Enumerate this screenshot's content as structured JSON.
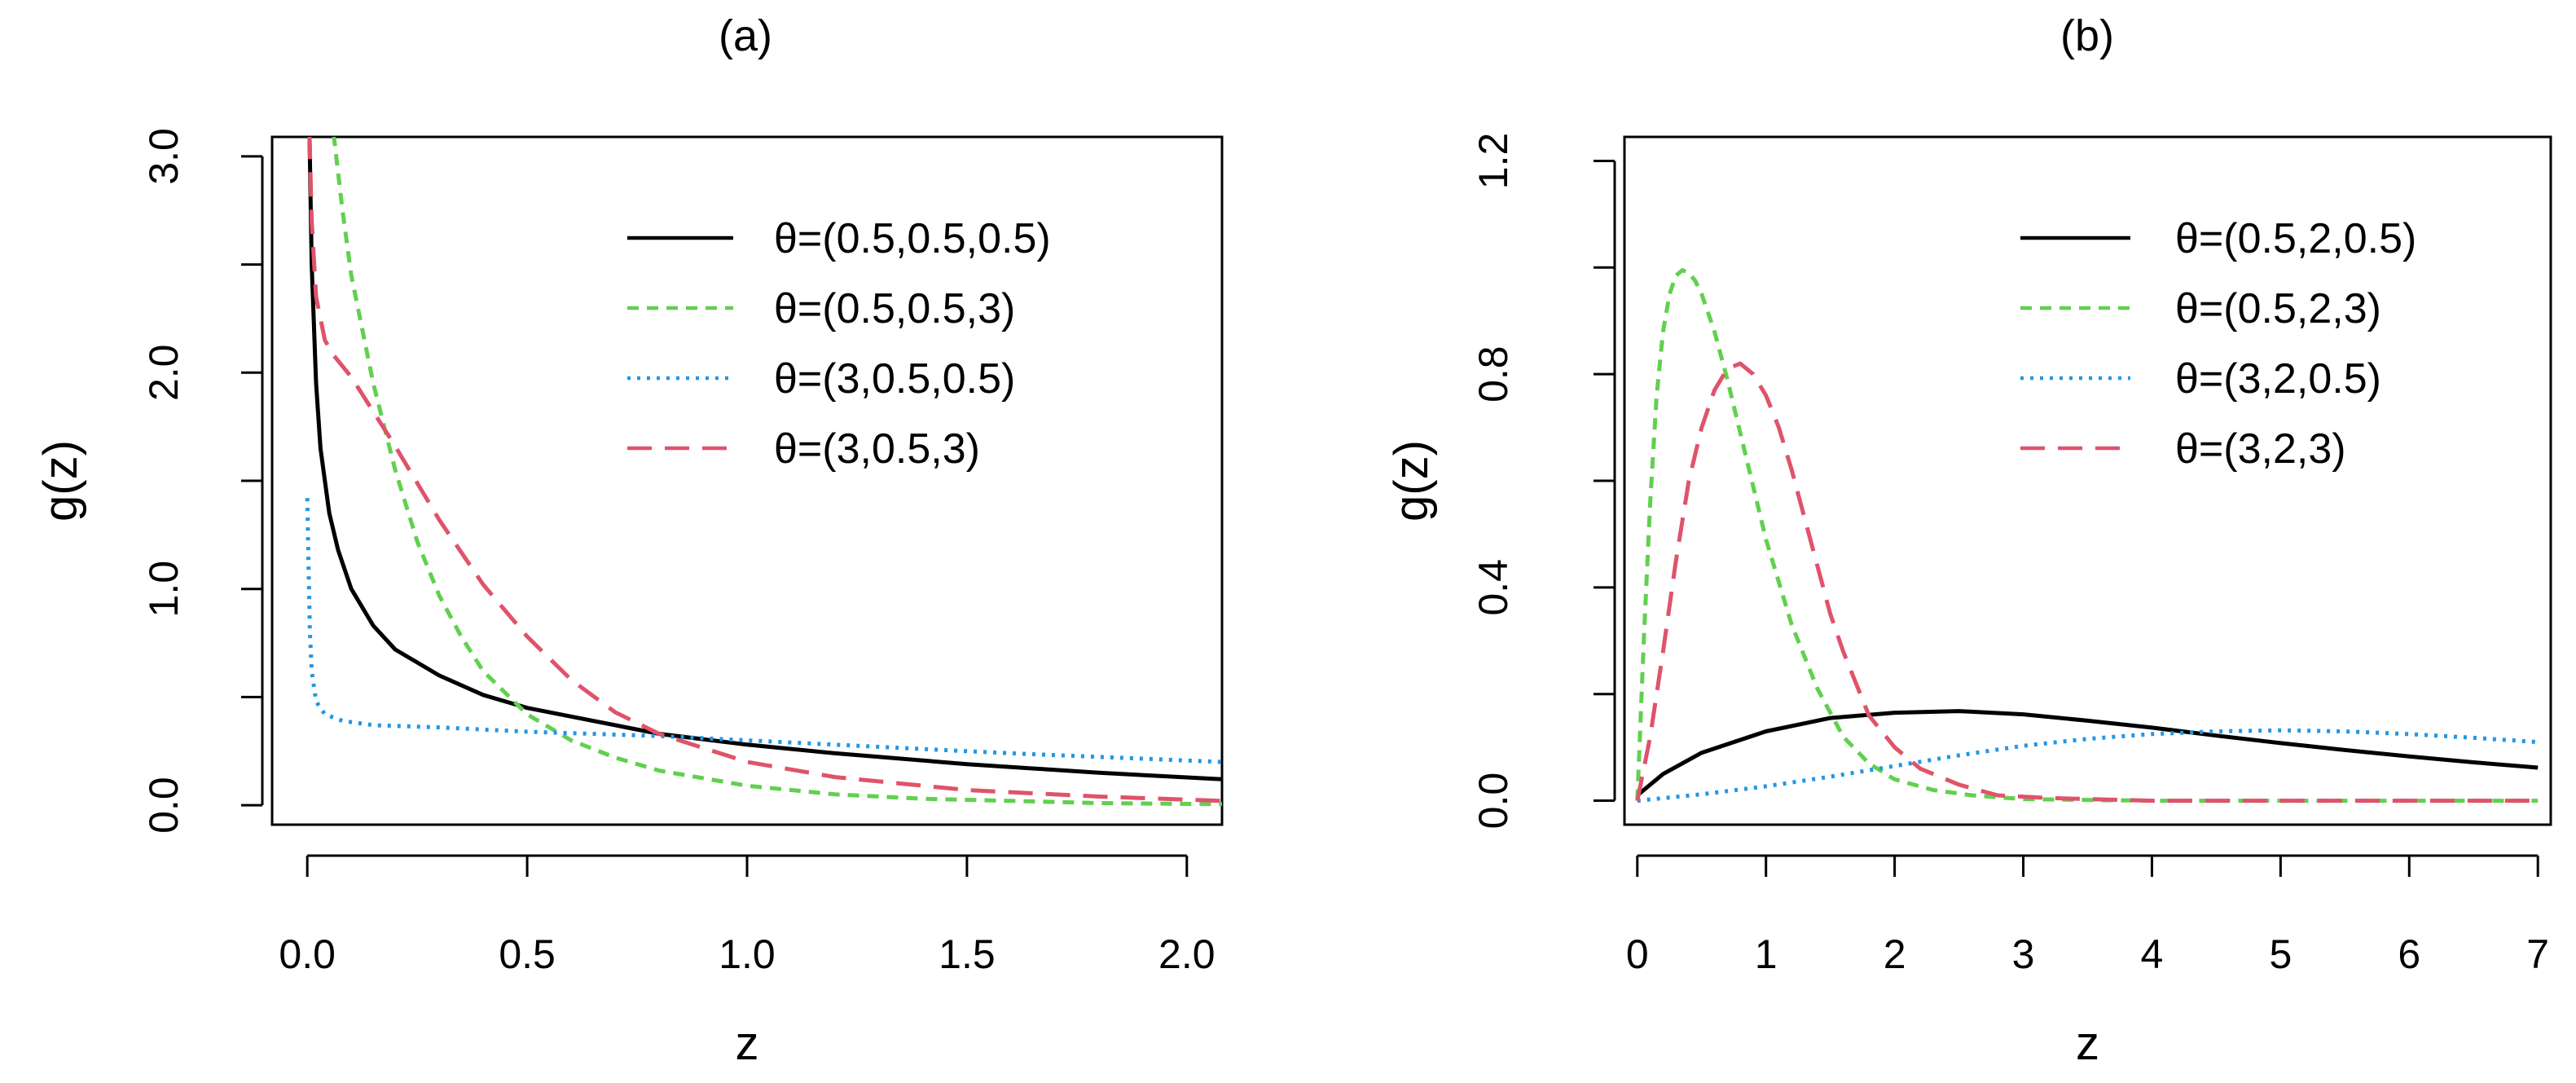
{
  "chart_data": [
    {
      "type": "line",
      "panel": "a",
      "title": "(a)",
      "xlabel": "z",
      "ylabel": "g(z)",
      "xlim": [
        -0.08,
        2.08
      ],
      "ylim": [
        -0.09,
        3.09
      ],
      "grid": false,
      "legend_position": "top-right",
      "x_ticks": [
        0.0,
        0.5,
        1.0,
        1.5,
        2.0
      ],
      "x_tick_labels": [
        "0.0",
        "0.5",
        "1.0",
        "1.5",
        "2.0"
      ],
      "y_ticks": [
        0.0,
        0.5,
        1.0,
        1.5,
        2.0,
        2.5,
        3.0
      ],
      "y_tick_labels": [
        "0.0",
        "",
        "1.0",
        "",
        "2.0",
        "",
        "3.0"
      ],
      "series": [
        {
          "name": "θ=(0.5,0.5,0.5)",
          "color": "#000000",
          "dash": "solid",
          "x": [
            0.005,
            0.01,
            0.02,
            0.03,
            0.05,
            0.07,
            0.1,
            0.15,
            0.2,
            0.3,
            0.4,
            0.5,
            0.6,
            0.8,
            1.0,
            1.2,
            1.5,
            1.8,
            2.08
          ],
          "y": [
            3.1,
            2.5,
            1.95,
            1.65,
            1.35,
            1.18,
            1.0,
            0.83,
            0.72,
            0.6,
            0.51,
            0.45,
            0.41,
            0.33,
            0.28,
            0.24,
            0.19,
            0.15,
            0.12
          ]
        },
        {
          "name": "θ=(0.5,0.5,3)",
          "color": "#61d04f",
          "dash": "dashed",
          "x": [
            0.06,
            0.08,
            0.1,
            0.15,
            0.2,
            0.25,
            0.3,
            0.35,
            0.4,
            0.5,
            0.6,
            0.7,
            0.8,
            1.0,
            1.2,
            1.4,
            1.6,
            1.8,
            2.08
          ],
          "y": [
            3.1,
            2.75,
            2.45,
            1.95,
            1.55,
            1.22,
            0.97,
            0.78,
            0.62,
            0.42,
            0.3,
            0.22,
            0.16,
            0.09,
            0.05,
            0.03,
            0.02,
            0.01,
            0.005
          ]
        },
        {
          "name": "θ=(3,0.5,0.5)",
          "color": "#2297e6",
          "dash": "dotted",
          "x": [
            0.0,
            0.003,
            0.006,
            0.01,
            0.02,
            0.04,
            0.08,
            0.15,
            0.3,
            0.5,
            0.8,
            1.0,
            1.3,
            1.6,
            2.08
          ],
          "y": [
            1.42,
            1.1,
            0.8,
            0.62,
            0.48,
            0.42,
            0.39,
            0.37,
            0.36,
            0.34,
            0.32,
            0.3,
            0.27,
            0.24,
            0.2
          ]
        },
        {
          "name": "θ=(3,0.5,3)",
          "color": "#df536b",
          "dash": "longdash",
          "x": [
            0.005,
            0.01,
            0.02,
            0.04,
            0.06,
            0.1,
            0.15,
            0.2,
            0.3,
            0.4,
            0.5,
            0.6,
            0.7,
            0.8,
            1.0,
            1.2,
            1.5,
            1.8,
            2.08
          ],
          "y": [
            3.1,
            2.7,
            2.35,
            2.15,
            2.08,
            1.98,
            1.82,
            1.66,
            1.32,
            1.02,
            0.78,
            0.58,
            0.43,
            0.33,
            0.2,
            0.13,
            0.07,
            0.04,
            0.02
          ]
        }
      ]
    },
    {
      "type": "line",
      "panel": "b",
      "title": "(b)",
      "xlabel": "z",
      "ylabel": "g(z)",
      "xlim": [
        -0.1,
        7.1
      ],
      "ylim": [
        -0.045,
        1.245
      ],
      "grid": false,
      "legend_position": "top-right",
      "x_ticks": [
        0,
        1,
        2,
        3,
        4,
        5,
        6,
        7
      ],
      "x_tick_labels": [
        "0",
        "1",
        "2",
        "3",
        "4",
        "5",
        "6",
        "7"
      ],
      "y_ticks": [
        0.0,
        0.2,
        0.4,
        0.6,
        0.8,
        1.0,
        1.2
      ],
      "y_tick_labels": [
        "0.0",
        "",
        "0.4",
        "",
        "0.8",
        "",
        "1.2"
      ],
      "series": [
        {
          "name": "θ=(0.5,2,0.5)",
          "color": "#000000",
          "dash": "solid",
          "x": [
            0.0,
            0.2,
            0.5,
            1.0,
            1.5,
            2.0,
            2.5,
            3.0,
            3.5,
            4.0,
            4.5,
            5.0,
            5.5,
            6.0,
            6.5,
            7.0
          ],
          "y": [
            0.01,
            0.05,
            0.09,
            0.13,
            0.155,
            0.165,
            0.168,
            0.162,
            0.15,
            0.137,
            0.122,
            0.108,
            0.095,
            0.083,
            0.072,
            0.062
          ]
        },
        {
          "name": "θ=(0.5,2,3)",
          "color": "#61d04f",
          "dash": "dashed",
          "x": [
            0.0,
            0.05,
            0.1,
            0.15,
            0.2,
            0.25,
            0.3,
            0.35,
            0.4,
            0.45,
            0.5,
            0.6,
            0.7,
            0.8,
            0.9,
            1.0,
            1.1,
            1.2,
            1.4,
            1.6,
            1.8,
            2.0,
            2.3,
            2.6,
            3.0,
            4.0,
            7.0
          ],
          "y": [
            0.0,
            0.3,
            0.56,
            0.76,
            0.88,
            0.95,
            0.985,
            0.995,
            0.99,
            0.975,
            0.95,
            0.88,
            0.79,
            0.69,
            0.59,
            0.49,
            0.41,
            0.33,
            0.21,
            0.12,
            0.07,
            0.04,
            0.02,
            0.01,
            0.003,
            0.0,
            0.0
          ]
        },
        {
          "name": "θ=(3,2,0.5)",
          "color": "#2297e6",
          "dash": "dotted",
          "x": [
            0.0,
            0.5,
            1.0,
            1.5,
            2.0,
            2.5,
            3.0,
            3.5,
            4.0,
            4.5,
            5.0,
            5.5,
            6.0,
            6.5,
            7.0
          ],
          "y": [
            0.0,
            0.012,
            0.027,
            0.045,
            0.065,
            0.085,
            0.103,
            0.116,
            0.125,
            0.13,
            0.132,
            0.13,
            0.125,
            0.118,
            0.11
          ]
        },
        {
          "name": "θ=(3,2,3)",
          "color": "#df536b",
          "dash": "longdash",
          "x": [
            0.0,
            0.1,
            0.2,
            0.3,
            0.4,
            0.5,
            0.6,
            0.7,
            0.8,
            0.9,
            1.0,
            1.1,
            1.2,
            1.3,
            1.4,
            1.5,
            1.6,
            1.8,
            2.0,
            2.2,
            2.5,
            2.8,
            3.2,
            4.0,
            7.0
          ],
          "y": [
            0.0,
            0.12,
            0.28,
            0.45,
            0.6,
            0.7,
            0.77,
            0.81,
            0.82,
            0.8,
            0.76,
            0.7,
            0.62,
            0.53,
            0.44,
            0.35,
            0.28,
            0.16,
            0.1,
            0.06,
            0.03,
            0.01,
            0.005,
            0.0,
            0.0
          ]
        }
      ]
    }
  ]
}
